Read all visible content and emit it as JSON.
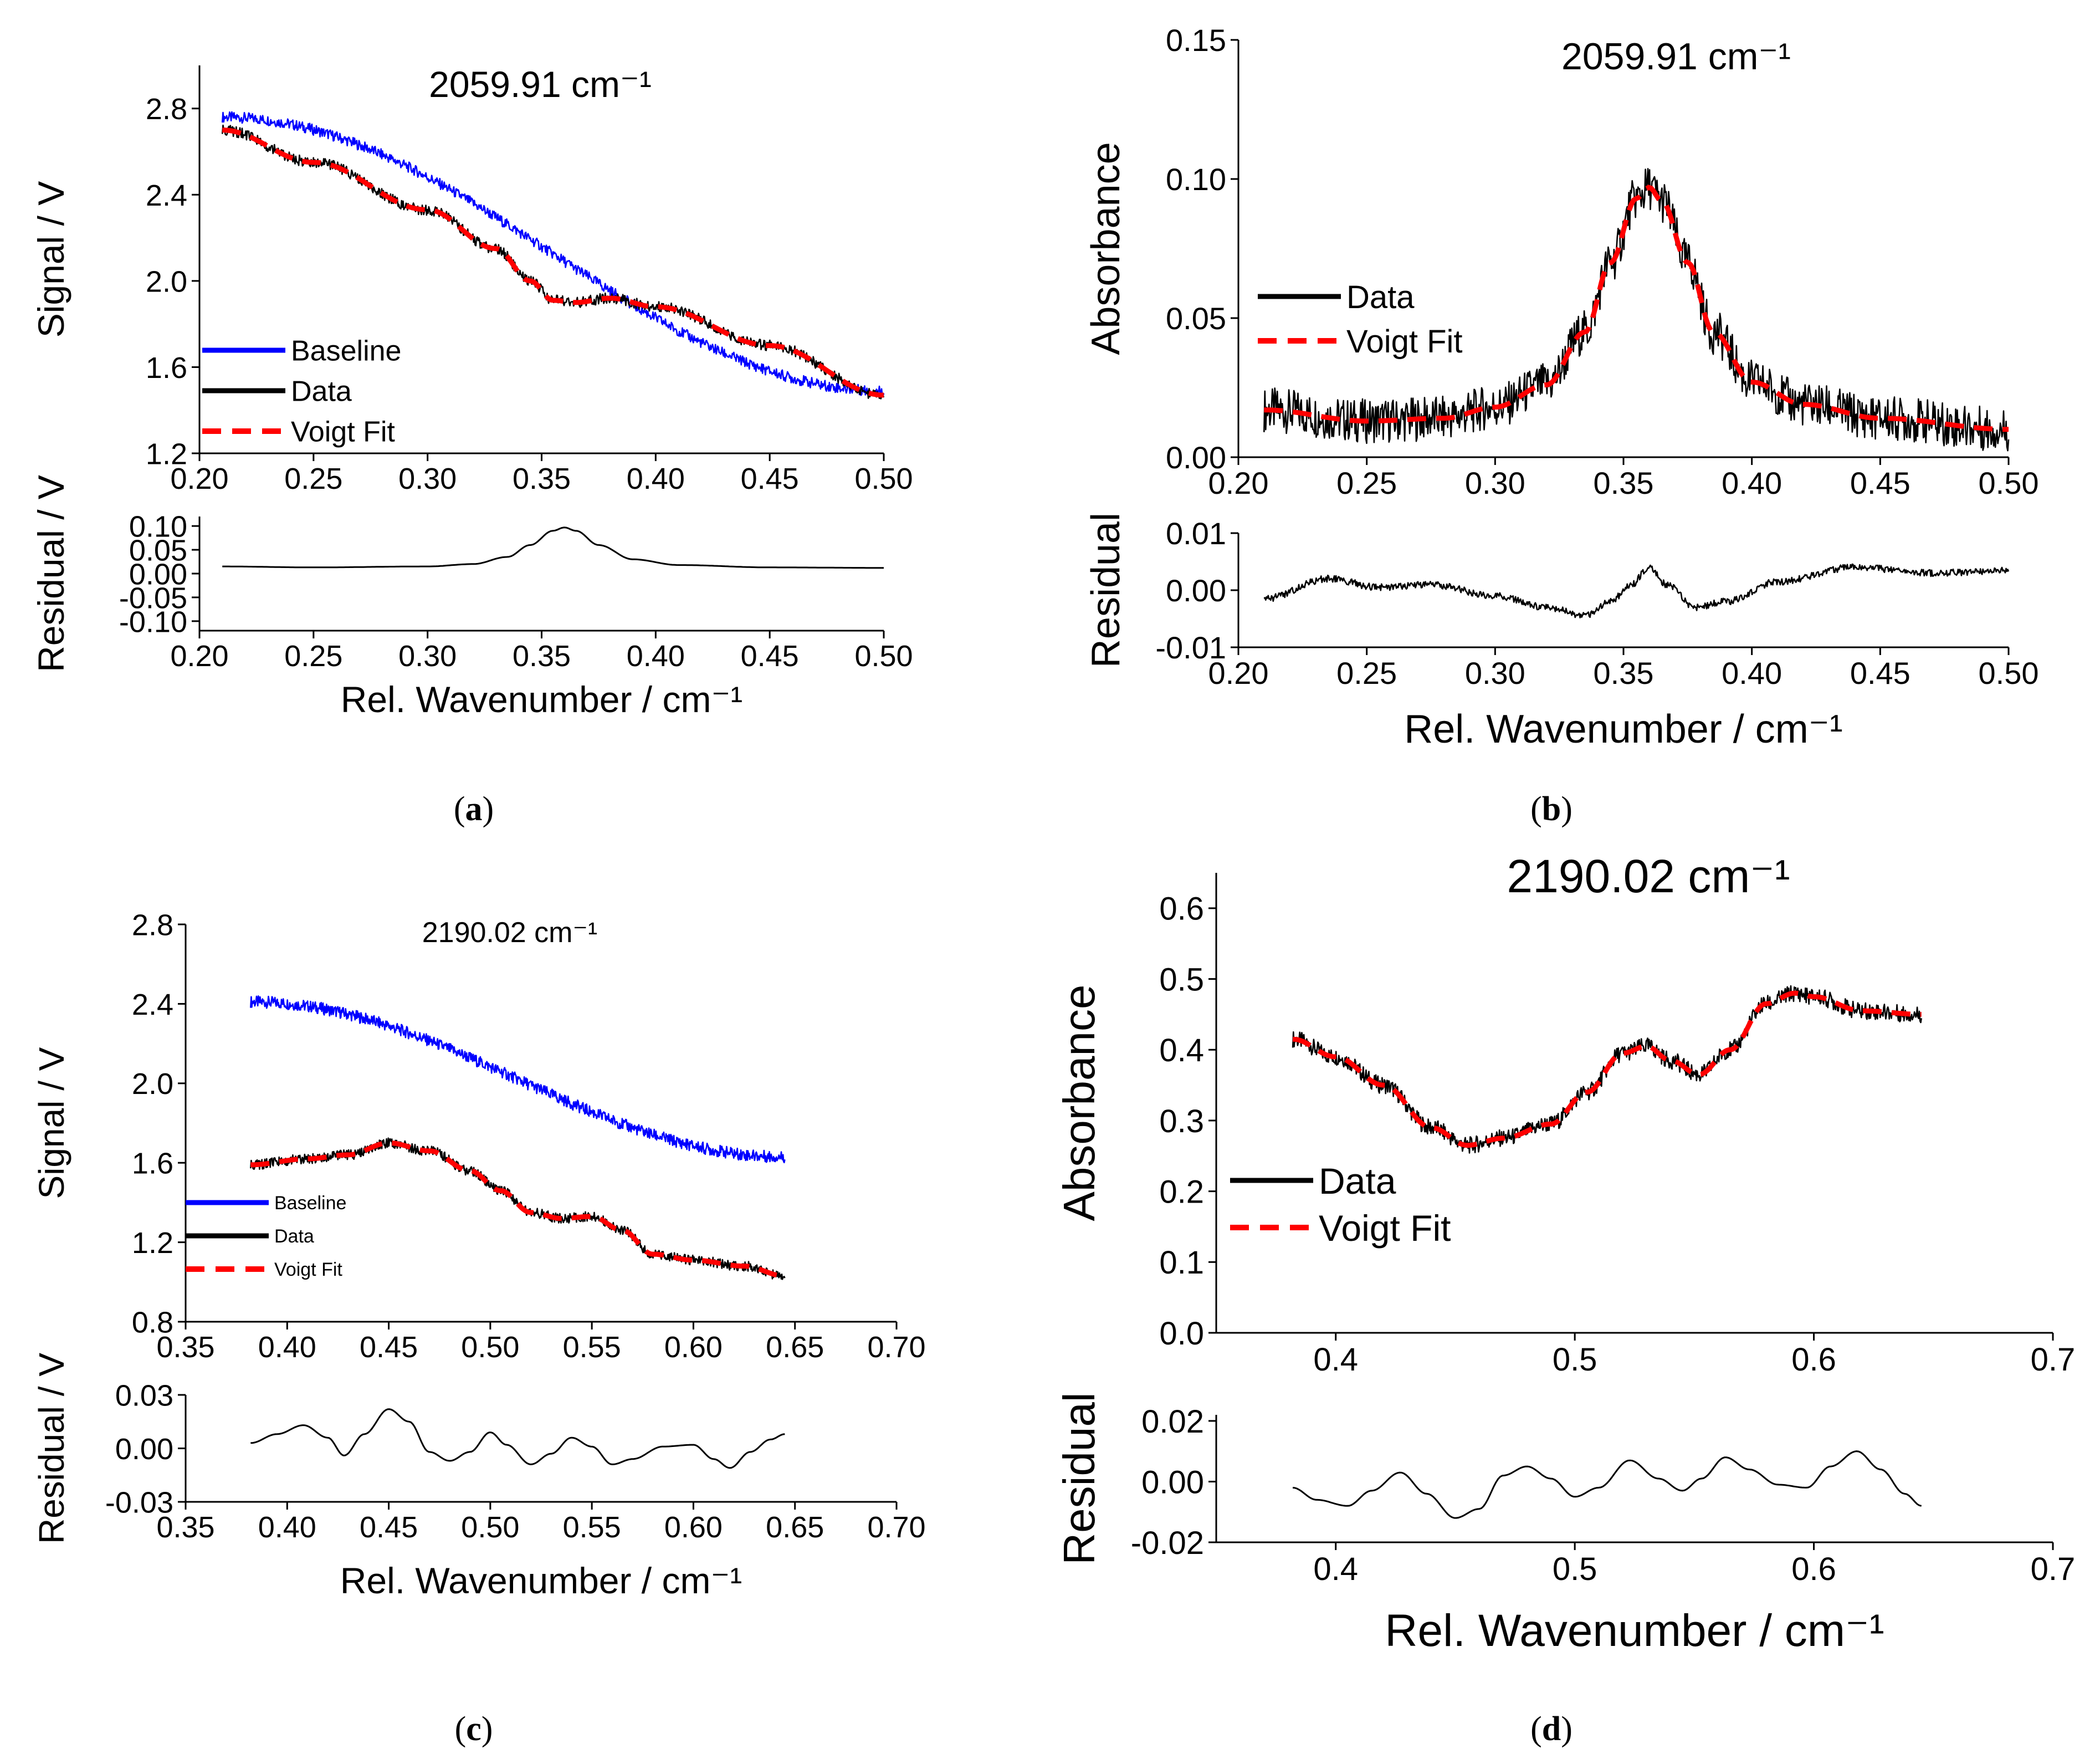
{
  "figure": {
    "captions": [
      "(a)",
      "(b)",
      "(c)",
      "(d)"
    ],
    "caption_letters": [
      "a",
      "b",
      "c",
      "d"
    ]
  },
  "chart_data": [
    {
      "id": "a",
      "type": "line",
      "title": "2059.91 cm⁻¹",
      "main": {
        "xlabel": "",
        "ylabel": "Signal / V",
        "xlim": [
          0.2,
          0.5
        ],
        "ylim": [
          1.2,
          3.0
        ],
        "xticks": [
          0.2,
          0.25,
          0.3,
          0.35,
          0.4,
          0.45,
          0.5
        ],
        "xtick_labels": [
          "0.20",
          "0.25",
          "0.30",
          "0.35",
          "0.40",
          "0.45",
          "0.50"
        ],
        "yticks": [
          1.2,
          1.6,
          2.0,
          2.4,
          2.8
        ],
        "ytick_labels": [
          "1.2",
          "1.6",
          "2.0",
          "2.4",
          "2.8"
        ],
        "legend": {
          "position": "bottom-left",
          "entries": [
            "Baseline",
            "Data",
            "Voigt Fit"
          ]
        },
        "series": [
          {
            "name": "Baseline",
            "color": "#0000ff",
            "style": "noisy-band",
            "noise": 0.025,
            "x": [
              0.21,
              0.5
            ],
            "y": [
              2.76,
              1.49
            ]
          },
          {
            "name": "Data",
            "color": "#000000",
            "style": "noisy-band",
            "noise": 0.025,
            "x": [
              0.21,
              0.25,
              0.3,
              0.33,
              0.345,
              0.355,
              0.365,
              0.38,
              0.4,
              0.45,
              0.5
            ],
            "y": [
              2.7,
              2.55,
              2.33,
              2.15,
              2.0,
              1.91,
              1.9,
              1.92,
              1.88,
              1.7,
              1.47
            ]
          },
          {
            "name": "Voigt Fit",
            "color": "#ff0000",
            "style": "dashed",
            "x": [
              0.21,
              0.25,
              0.3,
              0.33,
              0.345,
              0.355,
              0.365,
              0.38,
              0.4,
              0.45,
              0.5
            ],
            "y": [
              2.7,
              2.55,
              2.33,
              2.15,
              2.0,
              1.91,
              1.9,
              1.92,
              1.88,
              1.7,
              1.47
            ]
          }
        ]
      },
      "residual": {
        "xlabel": "Rel. Wavenumber / cm⁻¹",
        "ylabel": "Residual / V",
        "xlim": [
          0.2,
          0.5
        ],
        "ylim": [
          -0.12,
          0.12
        ],
        "xticks": [
          0.2,
          0.25,
          0.3,
          0.35,
          0.4,
          0.45,
          0.5
        ],
        "xtick_labels": [
          "0.20",
          "0.25",
          "0.30",
          "0.35",
          "0.40",
          "0.45",
          "0.50"
        ],
        "yticks": [
          0.1,
          0.05,
          0.0,
          -0.05,
          -0.1
        ],
        "ytick_labels": [
          "0.10",
          "0.05",
          "0.00",
          "-0.05",
          "-0.10"
        ],
        "series": [
          {
            "name": "Residual",
            "color": "#000000",
            "style": "line",
            "x": [
              0.21,
              0.25,
              0.3,
              0.32,
              0.335,
              0.345,
              0.355,
              0.36,
              0.365,
              0.375,
              0.39,
              0.41,
              0.45,
              0.5
            ],
            "y": [
              0.015,
              0.013,
              0.015,
              0.02,
              0.035,
              0.06,
              0.09,
              0.097,
              0.09,
              0.06,
              0.03,
              0.018,
              0.013,
              0.012
            ]
          }
        ]
      }
    },
    {
      "id": "b",
      "type": "line",
      "title": "2059.91 cm⁻¹",
      "main": {
        "xlabel": "",
        "ylabel": "Absorbance",
        "xlim": [
          0.2,
          0.5
        ],
        "ylim": [
          0.0,
          0.15
        ],
        "xticks": [
          0.2,
          0.25,
          0.3,
          0.35,
          0.4,
          0.45,
          0.5
        ],
        "xtick_labels": [
          "0.20",
          "0.25",
          "0.30",
          "0.35",
          "0.40",
          "0.45",
          "0.50"
        ],
        "yticks": [
          0.0,
          0.05,
          0.1,
          0.15
        ],
        "ytick_labels": [
          "0.00",
          "0.05",
          "0.10",
          "0.15"
        ],
        "legend": {
          "position": "middle-left",
          "entries": [
            "Data",
            "Voigt Fit"
          ]
        },
        "series": [
          {
            "name": "Data",
            "color": "#000000",
            "style": "noisy-band",
            "noise": 0.008,
            "x": [
              0.21,
              0.25,
              0.28,
              0.3,
              0.32,
              0.335,
              0.345,
              0.355,
              0.36,
              0.365,
              0.375,
              0.385,
              0.4,
              0.42,
              0.45,
              0.5
            ],
            "y": [
              0.017,
              0.013,
              0.014,
              0.018,
              0.026,
              0.045,
              0.07,
              0.093,
              0.097,
              0.092,
              0.07,
              0.045,
              0.027,
              0.019,
              0.014,
              0.01
            ]
          },
          {
            "name": "Voigt Fit",
            "color": "#ff0000",
            "style": "dashed",
            "x": [
              0.21,
              0.25,
              0.28,
              0.3,
              0.32,
              0.335,
              0.345,
              0.355,
              0.36,
              0.365,
              0.375,
              0.385,
              0.4,
              0.42,
              0.45,
              0.5
            ],
            "y": [
              0.017,
              0.013,
              0.014,
              0.018,
              0.026,
              0.045,
              0.07,
              0.093,
              0.097,
              0.092,
              0.07,
              0.045,
              0.027,
              0.019,
              0.014,
              0.01
            ]
          }
        ]
      },
      "residual": {
        "xlabel": "Rel. Wavenumber / cm⁻¹",
        "ylabel": "Residual",
        "xlim": [
          0.2,
          0.5
        ],
        "ylim": [
          -0.01,
          0.01
        ],
        "xticks": [
          0.2,
          0.25,
          0.3,
          0.35,
          0.4,
          0.45,
          0.5
        ],
        "xtick_labels": [
          "0.20",
          "0.25",
          "0.30",
          "0.35",
          "0.40",
          "0.45",
          "0.50"
        ],
        "yticks": [
          0.01,
          0.0,
          -0.01
        ],
        "ytick_labels": [
          "0.01",
          "0.00",
          "-0.01"
        ],
        "series": [
          {
            "name": "Residual",
            "color": "#000000",
            "style": "noisy-band",
            "noise": 0.0006,
            "x": [
              0.21,
              0.235,
              0.255,
              0.275,
              0.3,
              0.32,
              0.335,
              0.345,
              0.353,
              0.36,
              0.367,
              0.378,
              0.39,
              0.41,
              0.44,
              0.47,
              0.5
            ],
            "y": [
              -0.0015,
              0.002,
              0.0005,
              0.001,
              -0.001,
              -0.003,
              -0.0045,
              -0.002,
              0.001,
              0.004,
              0.001,
              -0.003,
              -0.002,
              0.0015,
              0.004,
              0.003,
              0.0035
            ]
          }
        ]
      }
    },
    {
      "id": "c",
      "type": "line",
      "title": "2190.02 cm⁻¹",
      "main": {
        "xlabel": "",
        "ylabel": "Signal / V",
        "xlim": [
          0.35,
          0.7
        ],
        "ylim": [
          0.8,
          2.8
        ],
        "xticks": [
          0.35,
          0.4,
          0.45,
          0.5,
          0.55,
          0.6,
          0.65,
          0.7
        ],
        "xtick_labels": [
          "0.35",
          "0.40",
          "0.45",
          "0.50",
          "0.55",
          "0.60",
          "0.65",
          "0.70"
        ],
        "yticks": [
          0.8,
          1.2,
          1.6,
          2.0,
          2.4,
          2.8
        ],
        "ytick_labels": [
          "0.8",
          "1.2",
          "1.6",
          "2.0",
          "2.4",
          "2.8"
        ],
        "legend": {
          "position": "bottom-left",
          "entries": [
            "Baseline",
            "Data",
            "Voigt Fit"
          ]
        },
        "series": [
          {
            "name": "Baseline",
            "color": "#0000ff",
            "style": "noisy-band",
            "noise": 0.03,
            "x": [
              0.382,
              0.645
            ],
            "y": [
              2.41,
              1.63
            ]
          },
          {
            "name": "Data",
            "color": "#000000",
            "style": "noisy-band",
            "noise": 0.025,
            "x": [
              0.382,
              0.41,
              0.43,
              0.45,
              0.47,
              0.49,
              0.505,
              0.52,
              0.535,
              0.55,
              0.565,
              0.58,
              0.6,
              0.625,
              0.645
            ],
            "y": [
              1.59,
              1.62,
              1.64,
              1.7,
              1.66,
              1.56,
              1.46,
              1.35,
              1.32,
              1.33,
              1.26,
              1.14,
              1.11,
              1.08,
              1.03
            ]
          },
          {
            "name": "Voigt Fit",
            "color": "#ff0000",
            "style": "dashed",
            "x": [
              0.382,
              0.41,
              0.43,
              0.45,
              0.47,
              0.49,
              0.505,
              0.52,
              0.535,
              0.55,
              0.565,
              0.58,
              0.6,
              0.625,
              0.645
            ],
            "y": [
              1.59,
              1.62,
              1.64,
              1.7,
              1.66,
              1.56,
              1.46,
              1.35,
              1.32,
              1.33,
              1.26,
              1.14,
              1.11,
              1.08,
              1.03
            ]
          }
        ]
      },
      "residual": {
        "xlabel": "Rel. Wavenumber / cm⁻¹",
        "ylabel": "Residual / V",
        "xlim": [
          0.35,
          0.7
        ],
        "ylim": [
          -0.03,
          0.03
        ],
        "xticks": [
          0.35,
          0.4,
          0.45,
          0.5,
          0.55,
          0.6,
          0.65,
          0.7
        ],
        "xtick_labels": [
          "0.35",
          "0.40",
          "0.45",
          "0.50",
          "0.55",
          "0.60",
          "0.65",
          "0.70"
        ],
        "yticks": [
          0.03,
          0.0,
          -0.03
        ],
        "ytick_labels": [
          "0.03",
          "0.00",
          "-0.03"
        ],
        "series": [
          {
            "name": "Residual",
            "color": "#000000",
            "style": "line",
            "x": [
              0.382,
              0.395,
              0.408,
              0.42,
              0.428,
              0.438,
              0.45,
              0.46,
              0.47,
              0.48,
              0.49,
              0.5,
              0.508,
              0.52,
              0.53,
              0.54,
              0.55,
              0.56,
              0.57,
              0.585,
              0.6,
              0.61,
              0.618,
              0.628,
              0.638,
              0.645
            ],
            "y": [
              0.003,
              0.008,
              0.013,
              0.006,
              -0.004,
              0.008,
              0.022,
              0.015,
              -0.002,
              -0.007,
              -0.002,
              0.009,
              0.002,
              -0.009,
              -0.003,
              0.006,
              0.001,
              -0.009,
              -0.006,
              0.001,
              0.002,
              -0.006,
              -0.011,
              -0.002,
              0.005,
              0.008
            ]
          }
        ]
      }
    },
    {
      "id": "d",
      "type": "line",
      "title": "2190.02 cm⁻¹",
      "main": {
        "xlabel": "",
        "ylabel": "Absorbance",
        "xlim": [
          0.35,
          0.7
        ],
        "ylim": [
          0.0,
          0.65
        ],
        "xticks": [
          0.4,
          0.5,
          0.6,
          0.7
        ],
        "xtick_labels": [
          "0.4",
          "0.5",
          "0.6",
          "0.7"
        ],
        "yticks": [
          0.0,
          0.1,
          0.2,
          0.3,
          0.4,
          0.5,
          0.6
        ],
        "ytick_labels": [
          "0.0",
          "0.1",
          "0.2",
          "0.3",
          "0.4",
          "0.5",
          "0.6"
        ],
        "legend": {
          "position": "bottom-left",
          "entries": [
            "Data",
            "Voigt Fit"
          ]
        },
        "series": [
          {
            "name": "Data",
            "color": "#000000",
            "style": "noisy-band",
            "noise": 0.012,
            "x": [
              0.382,
              0.4,
              0.42,
              0.44,
              0.455,
              0.47,
              0.49,
              0.505,
              0.52,
              0.53,
              0.54,
              0.552,
              0.565,
              0.58,
              0.592,
              0.6,
              0.62,
              0.645
            ],
            "y": [
              0.415,
              0.39,
              0.35,
              0.29,
              0.265,
              0.275,
              0.295,
              0.34,
              0.395,
              0.405,
              0.385,
              0.365,
              0.4,
              0.465,
              0.48,
              0.475,
              0.455,
              0.45
            ]
          },
          {
            "name": "Voigt Fit",
            "color": "#ff0000",
            "style": "dashed",
            "x": [
              0.382,
              0.4,
              0.42,
              0.44,
              0.455,
              0.47,
              0.49,
              0.505,
              0.52,
              0.53,
              0.54,
              0.552,
              0.565,
              0.58,
              0.592,
              0.6,
              0.62,
              0.645
            ],
            "y": [
              0.415,
              0.39,
              0.35,
              0.29,
              0.265,
              0.275,
              0.295,
              0.34,
              0.395,
              0.405,
              0.385,
              0.365,
              0.4,
              0.465,
              0.48,
              0.475,
              0.455,
              0.45
            ]
          }
        ]
      },
      "residual": {
        "xlabel": "Rel. Wavenumber / cm⁻¹",
        "ylabel": "Residual",
        "xlim": [
          0.35,
          0.7
        ],
        "ylim": [
          -0.02,
          0.022
        ],
        "xticks": [
          0.4,
          0.5,
          0.6,
          0.7
        ],
        "xtick_labels": [
          "0.4",
          "0.5",
          "0.6",
          "0.7"
        ],
        "yticks": [
          0.02,
          0.0,
          -0.02
        ],
        "ytick_labels": [
          "0.02",
          "0.00",
          "-0.02"
        ],
        "series": [
          {
            "name": "Residual",
            "color": "#000000",
            "style": "line",
            "x": [
              0.382,
              0.392,
              0.405,
              0.415,
              0.427,
              0.438,
              0.45,
              0.46,
              0.47,
              0.48,
              0.49,
              0.5,
              0.51,
              0.523,
              0.535,
              0.545,
              0.553,
              0.563,
              0.573,
              0.585,
              0.597,
              0.607,
              0.618,
              0.628,
              0.638,
              0.645
            ],
            "y": [
              -0.002,
              -0.006,
              -0.008,
              -0.003,
              0.003,
              -0.004,
              -0.012,
              -0.009,
              0.002,
              0.005,
              0.001,
              -0.005,
              -0.002,
              0.007,
              0.001,
              -0.003,
              0.001,
              0.008,
              0.004,
              -0.001,
              -0.002,
              0.005,
              0.01,
              0.004,
              -0.004,
              -0.008
            ]
          }
        ]
      }
    }
  ]
}
